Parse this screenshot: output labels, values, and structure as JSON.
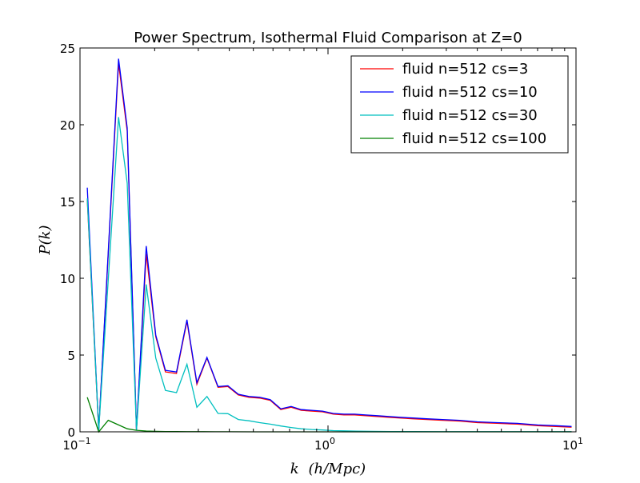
{
  "chart_data": {
    "type": "line",
    "title": "Power Spectrum, Isothermal Fluid Comparison at Z=0",
    "xlabel_var": "k",
    "xlabel_unit": "(h/Mpc)",
    "ylabel": "P(k)",
    "xscale": "log",
    "xlim": [
      0.1,
      10
    ],
    "ylim": [
      0,
      25
    ],
    "x_ticks": [
      {
        "value": 0.1,
        "base": "10",
        "exp": "−1"
      },
      {
        "value": 1,
        "base": "10",
        "exp": "0"
      },
      {
        "value": 10,
        "base": "10",
        "exp": "1"
      }
    ],
    "y_ticks": [
      {
        "value": 0,
        "label": "0"
      },
      {
        "value": 5,
        "label": "5"
      },
      {
        "value": 10,
        "label": "10"
      },
      {
        "value": 15,
        "label": "15"
      },
      {
        "value": 20,
        "label": "20"
      },
      {
        "value": 25,
        "label": "25"
      }
    ],
    "grid": false,
    "legend_position": "top-right",
    "series": [
      {
        "name": "fluid n=512 cs=3",
        "color": "#ff0000",
        "x": [
          0.107,
          0.119,
          0.143,
          0.155,
          0.169,
          0.185,
          0.202,
          0.221,
          0.245,
          0.27,
          0.296,
          0.325,
          0.36,
          0.395,
          0.435,
          0.48,
          0.53,
          0.585,
          0.645,
          0.71,
          0.78,
          0.86,
          0.95,
          1.05,
          1.16,
          1.28,
          1.42,
          1.58,
          1.75,
          1.95,
          2.2,
          2.5,
          2.9,
          3.4,
          4.0,
          4.8,
          5.8,
          7.0,
          8.3,
          9.6
        ],
        "y": [
          15.1,
          0.1,
          24.0,
          19.6,
          0.1,
          11.6,
          6.2,
          3.9,
          3.8,
          7.2,
          3.1,
          4.8,
          2.9,
          2.95,
          2.4,
          2.25,
          2.2,
          2.05,
          1.45,
          1.6,
          1.4,
          1.35,
          1.3,
          1.15,
          1.1,
          1.1,
          1.05,
          1.0,
          0.95,
          0.9,
          0.85,
          0.8,
          0.75,
          0.7,
          0.6,
          0.55,
          0.5,
          0.4,
          0.35,
          0.3
        ]
      },
      {
        "name": "fluid n=512 cs=10",
        "color": "#0000ff",
        "x": [
          0.107,
          0.119,
          0.143,
          0.155,
          0.169,
          0.185,
          0.202,
          0.221,
          0.245,
          0.27,
          0.296,
          0.325,
          0.36,
          0.395,
          0.435,
          0.48,
          0.53,
          0.585,
          0.645,
          0.71,
          0.78,
          0.86,
          0.95,
          1.05,
          1.16,
          1.28,
          1.42,
          1.58,
          1.75,
          1.95,
          2.2,
          2.5,
          2.9,
          3.4,
          4.0,
          4.8,
          5.8,
          7.0,
          8.3,
          9.6
        ],
        "y": [
          15.9,
          0.1,
          24.3,
          19.8,
          0.1,
          12.1,
          6.3,
          4.0,
          3.9,
          7.3,
          3.2,
          4.85,
          2.95,
          3.0,
          2.45,
          2.3,
          2.25,
          2.1,
          1.5,
          1.65,
          1.45,
          1.4,
          1.35,
          1.2,
          1.15,
          1.15,
          1.1,
          1.05,
          1.0,
          0.95,
          0.9,
          0.85,
          0.8,
          0.75,
          0.65,
          0.6,
          0.55,
          0.45,
          0.4,
          0.35
        ]
      },
      {
        "name": "fluid n=512 cs=30",
        "color": "#00bfbf",
        "x": [
          0.107,
          0.119,
          0.143,
          0.155,
          0.169,
          0.185,
          0.202,
          0.221,
          0.245,
          0.27,
          0.296,
          0.325,
          0.36,
          0.395,
          0.435,
          0.48,
          0.53,
          0.585,
          0.645,
          0.71,
          0.78,
          0.86,
          0.95,
          1.05,
          1.16,
          1.3,
          1.5,
          1.8,
          2.2,
          2.8,
          3.6,
          4.8,
          6.5,
          9.6
        ],
        "y": [
          15.2,
          0.1,
          20.5,
          16.2,
          0.1,
          9.6,
          4.8,
          2.7,
          2.55,
          4.4,
          1.6,
          2.3,
          1.2,
          1.18,
          0.8,
          0.72,
          0.6,
          0.5,
          0.38,
          0.28,
          0.2,
          0.15,
          0.12,
          0.08,
          0.06,
          0.04,
          0.03,
          0.02,
          0.015,
          0.01,
          0.01,
          0.01,
          0.01,
          0.01
        ]
      },
      {
        "name": "fluid n=512 cs=100",
        "color": "#008000",
        "x": [
          0.107,
          0.119,
          0.13,
          0.143,
          0.155,
          0.169,
          0.185,
          0.202,
          0.221,
          0.245,
          0.27,
          0.3,
          0.35,
          0.4,
          0.5,
          0.6,
          0.8,
          1.0,
          1.5,
          2.0,
          3.0,
          5.0,
          9.6
        ],
        "y": [
          2.25,
          0.0,
          0.75,
          0.45,
          0.2,
          0.1,
          0.05,
          0.03,
          0.02,
          0.015,
          0.01,
          0.01,
          0.005,
          0.005,
          0.0,
          0.0,
          0.0,
          0.0,
          0.0,
          0.0,
          0.0,
          0.0,
          0.0
        ]
      }
    ]
  }
}
